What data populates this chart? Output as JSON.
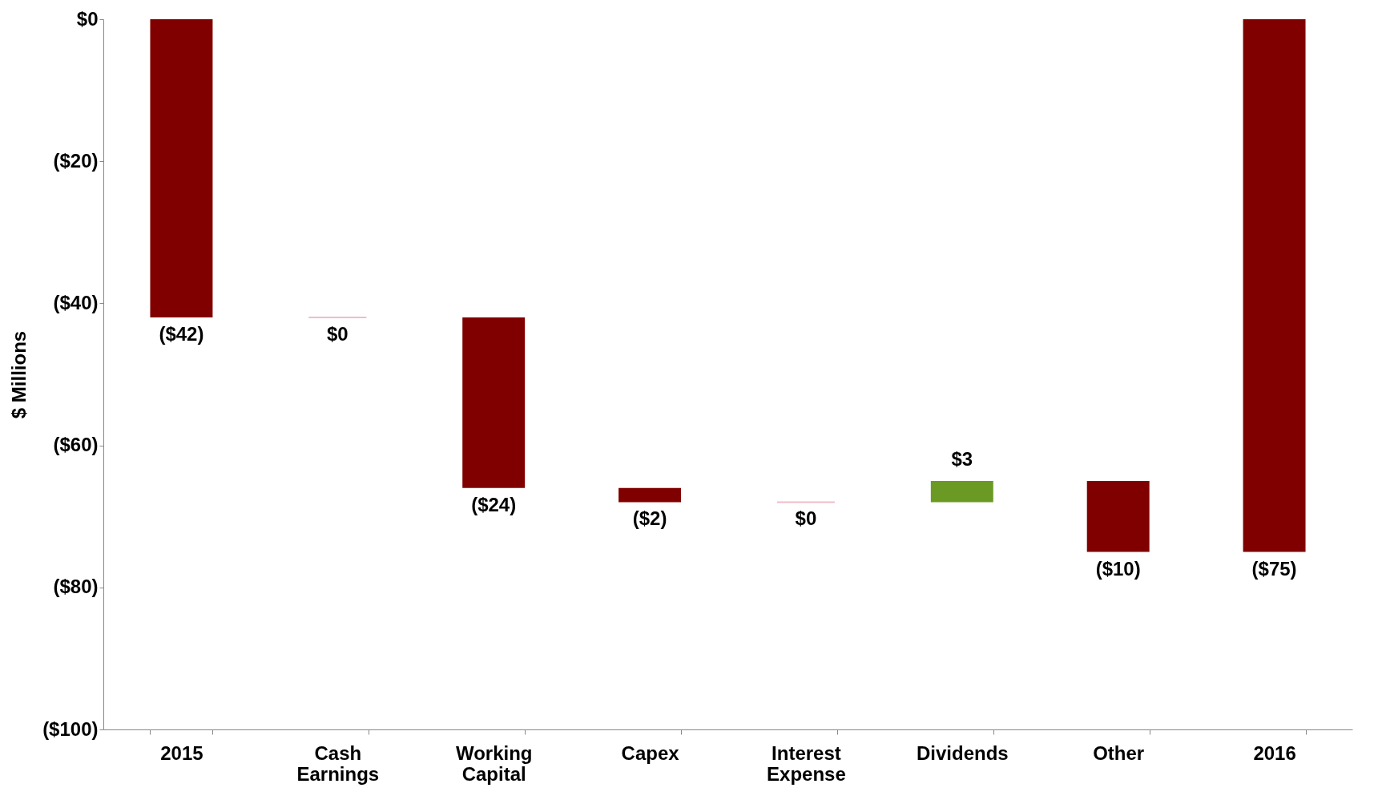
{
  "chart_data": {
    "type": "bar",
    "ylabel": "$ Millions",
    "categories": [
      "2015",
      "Cash Earnings",
      "Working Capital",
      "Capex",
      "Interest Expense",
      "Dividends",
      "Other",
      "2016"
    ],
    "base": [
      0,
      -42,
      -42,
      -66,
      -68,
      -68,
      -65,
      0
    ],
    "values": [
      -42,
      0,
      -24,
      -2,
      0,
      3,
      -10,
      -75
    ],
    "colors": [
      "#800000",
      "#e8a0b0",
      "#800000",
      "#800000",
      "#e8a0b0",
      "#6b9a24",
      "#800000",
      "#800000"
    ],
    "value_labels": [
      "($42)",
      "$0",
      "($24)",
      "($2)",
      "$0",
      "$3",
      "($10)",
      "($75)"
    ],
    "ylim": [
      -100,
      0
    ],
    "yticks": [
      {
        "value": 0,
        "label": "$0"
      },
      {
        "value": -20,
        "label": "($20)"
      },
      {
        "value": -40,
        "label": "($40)"
      },
      {
        "value": -60,
        "label": "($60)"
      },
      {
        "value": -80,
        "label": "($80)"
      },
      {
        "value": -100,
        "label": "($100)"
      }
    ],
    "grid": false
  }
}
